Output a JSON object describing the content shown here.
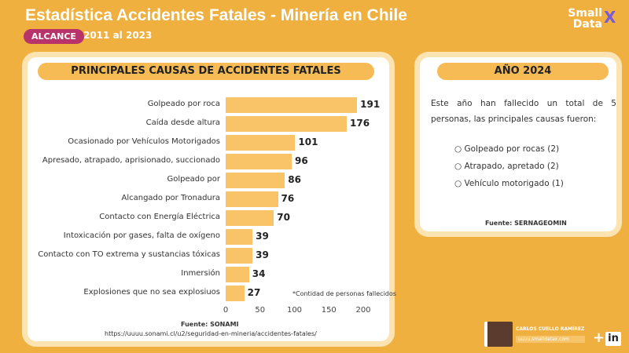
{
  "header": {
    "title": "Estadística Accidentes Fatales - Minería en Chile",
    "badge": "ALCANCE",
    "range": "2011 al 2023",
    "logo_line1": "Small",
    "logo_line2": "Data",
    "logo_mark": "X"
  },
  "chart_data": {
    "type": "bar",
    "orientation": "horizontal",
    "title": "PRINCIPALES CAUSAS DE ACCIDENTES FATALES",
    "categories": [
      "Golpeado por roca",
      "Caída desde altura",
      "Ocasionado por Vehículos Motorigados",
      "Apresado, atrapado, aprisionado, succionado",
      "Golpeado por",
      "Alcangado por Tronadura",
      "Contacto con Energía Eléctrica",
      "Intoxicación por gases, falta de oxígeno",
      "Contacto con TO extrema y sustancias tóxicas",
      "Inmersión",
      "Explosiones que no sea explosiuos"
    ],
    "values": [
      191,
      176,
      101,
      96,
      86,
      76,
      70,
      39,
      39,
      34,
      27
    ],
    "xticks": [
      0,
      50,
      100,
      150,
      200
    ],
    "xlim": [
      0,
      200
    ],
    "grid": false,
    "bar_color": "#F9C368",
    "note": "*Contidad de personas fallecidos",
    "source": "Fuente: SONAMI",
    "url": "https://uuuu.sonami.cl/u2/seguridad-en-mineria/accidentes-fatales/"
  },
  "side": {
    "title": "AÑO 2024",
    "text": "Este año han fallecido un total de 5 personas, las principales causas fueron:",
    "items": [
      "Golpeado por rocas (2)",
      "Atrapado, apretado (2)",
      "Vehículo motorigado (1)"
    ],
    "source": "Fuente: SERNAGEOMIN"
  },
  "footer": {
    "author": "CARLOS CUELLO RAMÍREZ",
    "site": "uuuu.smalldatax.com",
    "plus": "+",
    "linkedin": "in"
  }
}
